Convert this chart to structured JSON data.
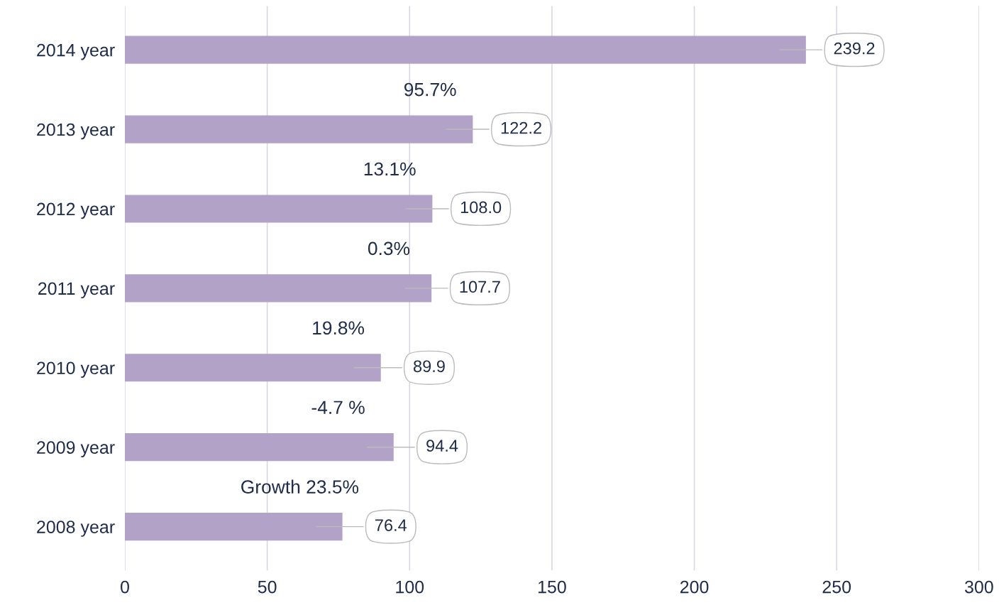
{
  "chart_data": {
    "type": "bar",
    "orientation": "horizontal",
    "categories": [
      "2014 year",
      "2013 year",
      "2012 year",
      "2011 year",
      "2010 year",
      "2009 year",
      "2008 year"
    ],
    "values": [
      239.2,
      122.2,
      108.0,
      107.7,
      89.9,
      94.4,
      76.4
    ],
    "value_labels": [
      "239.2",
      "122.2",
      "108.0",
      "107.7",
      "89.9",
      "94.4",
      "76.4"
    ],
    "color": "#b3a2c8",
    "annotations": [
      "95.7%",
      "13.1%",
      "0.3%",
      "19.8%",
      "-4.7 %",
      "Growth 23.5%"
    ],
    "xlim": [
      0,
      300
    ],
    "xticks": [
      0,
      50,
      100,
      150,
      200,
      250,
      300
    ],
    "grid": "x"
  }
}
